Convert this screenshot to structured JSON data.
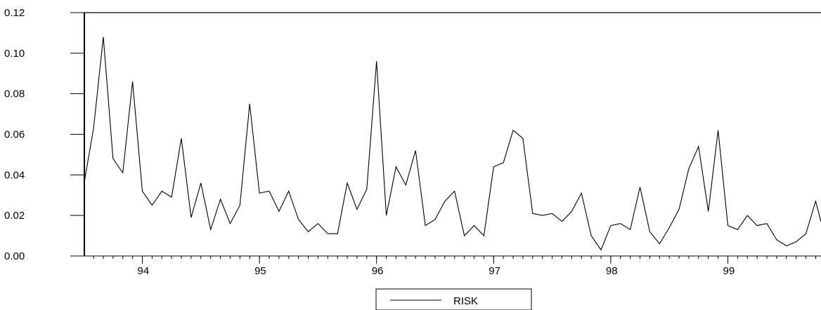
{
  "chart_data": {
    "type": "line",
    "title": "",
    "xlabel": "",
    "ylabel": "",
    "ylim": [
      0,
      0.12
    ],
    "y_ticks": [
      "0.00",
      "0.02",
      "0.04",
      "0.06",
      "0.08",
      "0.10",
      "0.12"
    ],
    "x_ticks": [
      "94",
      "95",
      "96",
      "97",
      "98",
      "99"
    ],
    "x_start": 93.5,
    "x_step": 0.08333,
    "grid": false,
    "legend_position": "bottom-center",
    "series": [
      {
        "name": "RISK",
        "color": "#000000",
        "values": [
          0.035,
          0.063,
          0.108,
          0.048,
          0.041,
          0.086,
          0.032,
          0.025,
          0.032,
          0.029,
          0.058,
          0.019,
          0.036,
          0.013,
          0.028,
          0.016,
          0.025,
          0.075,
          0.031,
          0.032,
          0.022,
          0.032,
          0.018,
          0.012,
          0.016,
          0.011,
          0.011,
          0.036,
          0.023,
          0.033,
          0.096,
          0.02,
          0.044,
          0.035,
          0.052,
          0.015,
          0.018,
          0.027,
          0.032,
          0.01,
          0.015,
          0.01,
          0.044,
          0.046,
          0.062,
          0.058,
          0.021,
          0.02,
          0.021,
          0.017,
          0.022,
          0.031,
          0.01,
          0.003,
          0.015,
          0.016,
          0.013,
          0.034,
          0.012,
          0.006,
          0.014,
          0.023,
          0.043,
          0.054,
          0.022,
          0.062,
          0.015,
          0.013,
          0.02,
          0.015,
          0.016,
          0.008,
          0.005,
          0.007,
          0.011,
          0.027,
          0.017
        ]
      }
    ]
  }
}
